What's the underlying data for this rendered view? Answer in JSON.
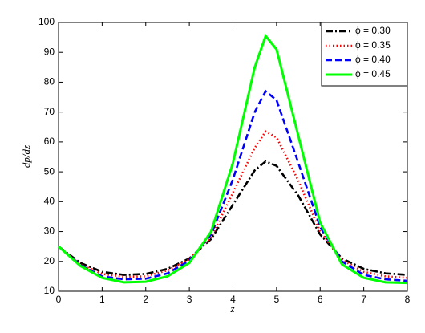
{
  "chart_data": {
    "type": "line",
    "x_label": "z",
    "y_label": "dp/dz",
    "x": [
      0,
      0.5,
      1,
      1.5,
      2,
      2.5,
      3,
      3.5,
      4,
      4.5,
      4.75,
      5,
      5.5,
      6,
      6.5,
      7,
      7.5,
      8
    ],
    "series": [
      {
        "name": "ϕ = 0.30",
        "color": "#000000",
        "dash": "9,3,2,3",
        "values": [
          25,
          19.5,
          16.5,
          15.5,
          15.8,
          17.5,
          21,
          27.5,
          39,
          50.5,
          53.5,
          52,
          42,
          29,
          21,
          17.5,
          16,
          15.5
        ]
      },
      {
        "name": "ϕ = 0.35",
        "color": "#ff0000",
        "dash": "1.5,3",
        "values": [
          25,
          19,
          15.8,
          14.8,
          15,
          17,
          20.8,
          28,
          43,
          58,
          63.5,
          61.5,
          47,
          30,
          20.5,
          16.5,
          15,
          14.5
        ]
      },
      {
        "name": "ϕ = 0.40",
        "color": "#0000ff",
        "dash": "8,4",
        "values": [
          25,
          18.8,
          15,
          14,
          14.2,
          16,
          20.3,
          29,
          47.5,
          70,
          77,
          74,
          53,
          31.5,
          20,
          15.5,
          14,
          13.5
        ]
      },
      {
        "name": "ϕ = 0.45",
        "color": "#00ff00",
        "dash": "none",
        "values": [
          25,
          18.5,
          14.5,
          13,
          13.2,
          15,
          19.5,
          30,
          53,
          85,
          95.5,
          91,
          62,
          33,
          19,
          14.5,
          13,
          12.8
        ]
      }
    ],
    "xlim": [
      0,
      8
    ],
    "xticks": [
      0,
      1,
      2,
      3,
      4,
      5,
      6,
      7,
      8
    ],
    "ylim": [
      10,
      100
    ],
    "yticks": [
      10,
      20,
      30,
      40,
      50,
      60,
      70,
      80,
      90,
      100
    ],
    "legend": "top-right"
  }
}
